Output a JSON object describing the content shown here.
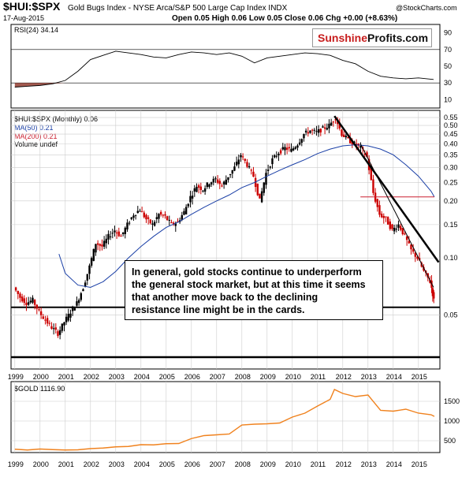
{
  "header": {
    "symbol": "$HUI:$SPX",
    "description": "Gold Bugs Index - NYSE Arca/S&P 500 Large Cap Index INDX",
    "date": "17-Aug-2015",
    "quote": "Open 0.05  High 0.06  Low 0.05  Close 0.06  Chg +0.00 (+8.63%)",
    "watermark": "@StockCharts.com"
  },
  "logo": {
    "part1": "Sunshine",
    "part2": "Profits.com"
  },
  "annotation": {
    "lines": [
      "In general, gold stocks continue to underperform",
      "the general stock market, but at this time it seems",
      "that another move back to the declining",
      "resistance line might be in the cards."
    ]
  },
  "colors": {
    "up": "#000000",
    "down": "#cc0000",
    "ma50": "#1a3fa6",
    "ma200": "#cc2030",
    "rsi_fill": "#a35a50",
    "gold": "#f0821e",
    "trendline": "#000000",
    "support": "#000000"
  },
  "chart_data": [
    {
      "type": "line",
      "panel": "rsi",
      "label": "RSI(24) 34.14",
      "y_ticks": [
        10,
        30,
        50,
        70,
        90
      ],
      "ylim": [
        0,
        100
      ],
      "reference_lines": [
        30,
        70
      ],
      "series": [
        {
          "name": "RSI(24)",
          "x": [
            1999.0,
            1999.5,
            2000.0,
            2000.5,
            2001.0,
            2001.5,
            2002.0,
            2002.5,
            2003.0,
            2003.5,
            2004.0,
            2004.5,
            2005.0,
            2005.5,
            2006.0,
            2006.5,
            2007.0,
            2007.5,
            2008.0,
            2008.5,
            2009.0,
            2009.5,
            2010.0,
            2010.5,
            2011.0,
            2011.5,
            2012.0,
            2012.5,
            2013.0,
            2013.5,
            2014.0,
            2014.5,
            2015.0,
            2015.6
          ],
          "values": [
            25,
            26,
            27,
            29,
            33,
            44,
            58,
            63,
            68,
            66,
            64,
            61,
            60,
            64,
            67,
            66,
            64,
            66,
            62,
            54,
            60,
            62,
            64,
            66,
            65,
            63,
            57,
            53,
            44,
            38,
            36,
            35,
            36,
            34.14
          ]
        }
      ]
    },
    {
      "type": "candlestick",
      "panel": "price",
      "label": "$HUI:$SPX (Monthly) 0.06",
      "scale": "log",
      "y_ticks": [
        0.05,
        0.1,
        0.15,
        0.2,
        0.25,
        0.3,
        0.35,
        0.4,
        0.45,
        0.5,
        0.55
      ],
      "ylim": [
        0.026,
        0.6
      ],
      "x_ticks": [
        "1999",
        "2000",
        "2001",
        "2002",
        "2003",
        "2004",
        "2005",
        "2006",
        "2007",
        "2008",
        "2009",
        "2010",
        "2011",
        "2012",
        "2013",
        "2014",
        "2015"
      ],
      "legend": [
        "$HUI:$SPX (Monthly) 0.06",
        "MA(50) 0.21",
        "MA(200) 0.21",
        "Volume undef"
      ],
      "series": [
        {
          "name": "$HUI:$SPX",
          "x": [
            1999.0,
            1999.25,
            1999.5,
            1999.75,
            2000.0,
            2000.25,
            2000.5,
            2000.75,
            2001.0,
            2001.25,
            2001.5,
            2001.75,
            2002.0,
            2002.25,
            2002.5,
            2002.75,
            2003.0,
            2003.25,
            2003.5,
            2003.75,
            2004.0,
            2004.25,
            2004.5,
            2004.75,
            2005.0,
            2005.25,
            2005.5,
            2005.75,
            2006.0,
            2006.25,
            2006.5,
            2006.75,
            2007.0,
            2007.25,
            2007.5,
            2007.75,
            2008.0,
            2008.25,
            2008.5,
            2008.75,
            2009.0,
            2009.25,
            2009.5,
            2009.75,
            2010.0,
            2010.25,
            2010.5,
            2010.75,
            2011.0,
            2011.25,
            2011.5,
            2011.75,
            2012.0,
            2012.25,
            2012.5,
            2012.75,
            2013.0,
            2013.25,
            2013.5,
            2013.75,
            2014.0,
            2014.25,
            2014.5,
            2014.75,
            2015.0,
            2015.25,
            2015.5,
            2015.63
          ],
          "values": [
            0.07,
            0.062,
            0.058,
            0.06,
            0.052,
            0.047,
            0.043,
            0.04,
            0.046,
            0.052,
            0.058,
            0.07,
            0.09,
            0.12,
            0.115,
            0.13,
            0.14,
            0.13,
            0.15,
            0.17,
            0.18,
            0.16,
            0.15,
            0.17,
            0.165,
            0.15,
            0.155,
            0.175,
            0.21,
            0.24,
            0.23,
            0.25,
            0.26,
            0.24,
            0.27,
            0.3,
            0.35,
            0.31,
            0.27,
            0.2,
            0.28,
            0.33,
            0.36,
            0.38,
            0.37,
            0.4,
            0.45,
            0.47,
            0.46,
            0.48,
            0.5,
            0.55,
            0.45,
            0.42,
            0.4,
            0.38,
            0.34,
            0.22,
            0.17,
            0.16,
            0.14,
            0.15,
            0.13,
            0.11,
            0.1,
            0.085,
            0.075,
            0.06
          ]
        },
        {
          "name": "MA(50) 0.21",
          "x": [
            2000.75,
            2001.0,
            2001.5,
            2002.0,
            2002.5,
            2003.0,
            2003.5,
            2004.0,
            2004.5,
            2005.0,
            2005.5,
            2006.0,
            2006.5,
            2007.0,
            2007.5,
            2008.0,
            2008.5,
            2009.0,
            2009.5,
            2010.0,
            2010.5,
            2011.0,
            2011.5,
            2012.0,
            2012.5,
            2013.0,
            2013.5,
            2014.0,
            2014.5,
            2015.0,
            2015.5,
            2015.63
          ],
          "values": [
            0.105,
            0.083,
            0.072,
            0.07,
            0.075,
            0.085,
            0.1,
            0.115,
            0.13,
            0.145,
            0.155,
            0.17,
            0.185,
            0.2,
            0.215,
            0.235,
            0.25,
            0.27,
            0.29,
            0.31,
            0.33,
            0.355,
            0.375,
            0.39,
            0.395,
            0.39,
            0.375,
            0.35,
            0.31,
            0.27,
            0.225,
            0.21
          ]
        },
        {
          "name": "MA(200) 0.21",
          "x": [
            2012.7,
            2015.63
          ],
          "values": [
            0.21,
            0.21
          ]
        }
      ],
      "lines": {
        "support": 0.055,
        "bottom": 0.03,
        "trend_thick": {
          "x": [
            2011.67,
            2015.8
          ],
          "y": [
            0.56,
            0.095
          ]
        },
        "trend_thin": {
          "x": [
            2012.7,
            2015.6
          ],
          "y": [
            0.4,
            0.07
          ]
        }
      }
    },
    {
      "type": "line",
      "panel": "gold",
      "label": "$GOLD 1116.90",
      "y_ticks": [
        500,
        1000,
        1500
      ],
      "ylim": [
        200,
        2000
      ],
      "x_ticks": [
        "1999",
        "2000",
        "2001",
        "2002",
        "2003",
        "2004",
        "2005",
        "2006",
        "2007",
        "2008",
        "2009",
        "2010",
        "2011",
        "2012",
        "2013",
        "2014",
        "2015"
      ],
      "series": [
        {
          "name": "$GOLD",
          "x": [
            1999.0,
            1999.5,
            2000.0,
            2000.5,
            2001.0,
            2001.5,
            2002.0,
            2002.5,
            2003.0,
            2003.5,
            2004.0,
            2004.5,
            2005.0,
            2005.5,
            2006.0,
            2006.5,
            2007.0,
            2007.5,
            2008.0,
            2008.5,
            2009.0,
            2009.5,
            2010.0,
            2010.5,
            2011.0,
            2011.5,
            2011.67,
            2012.0,
            2012.5,
            2013.0,
            2013.5,
            2014.0,
            2014.5,
            2015.0,
            2015.5,
            2015.63
          ],
          "values": [
            285,
            265,
            290,
            275,
            265,
            270,
            300,
            315,
            345,
            355,
            400,
            395,
            425,
            430,
            555,
            630,
            650,
            670,
            900,
            920,
            930,
            950,
            1100,
            1200,
            1380,
            1550,
            1800,
            1700,
            1620,
            1660,
            1270,
            1250,
            1300,
            1200,
            1160,
            1116.9
          ]
        }
      ]
    }
  ]
}
